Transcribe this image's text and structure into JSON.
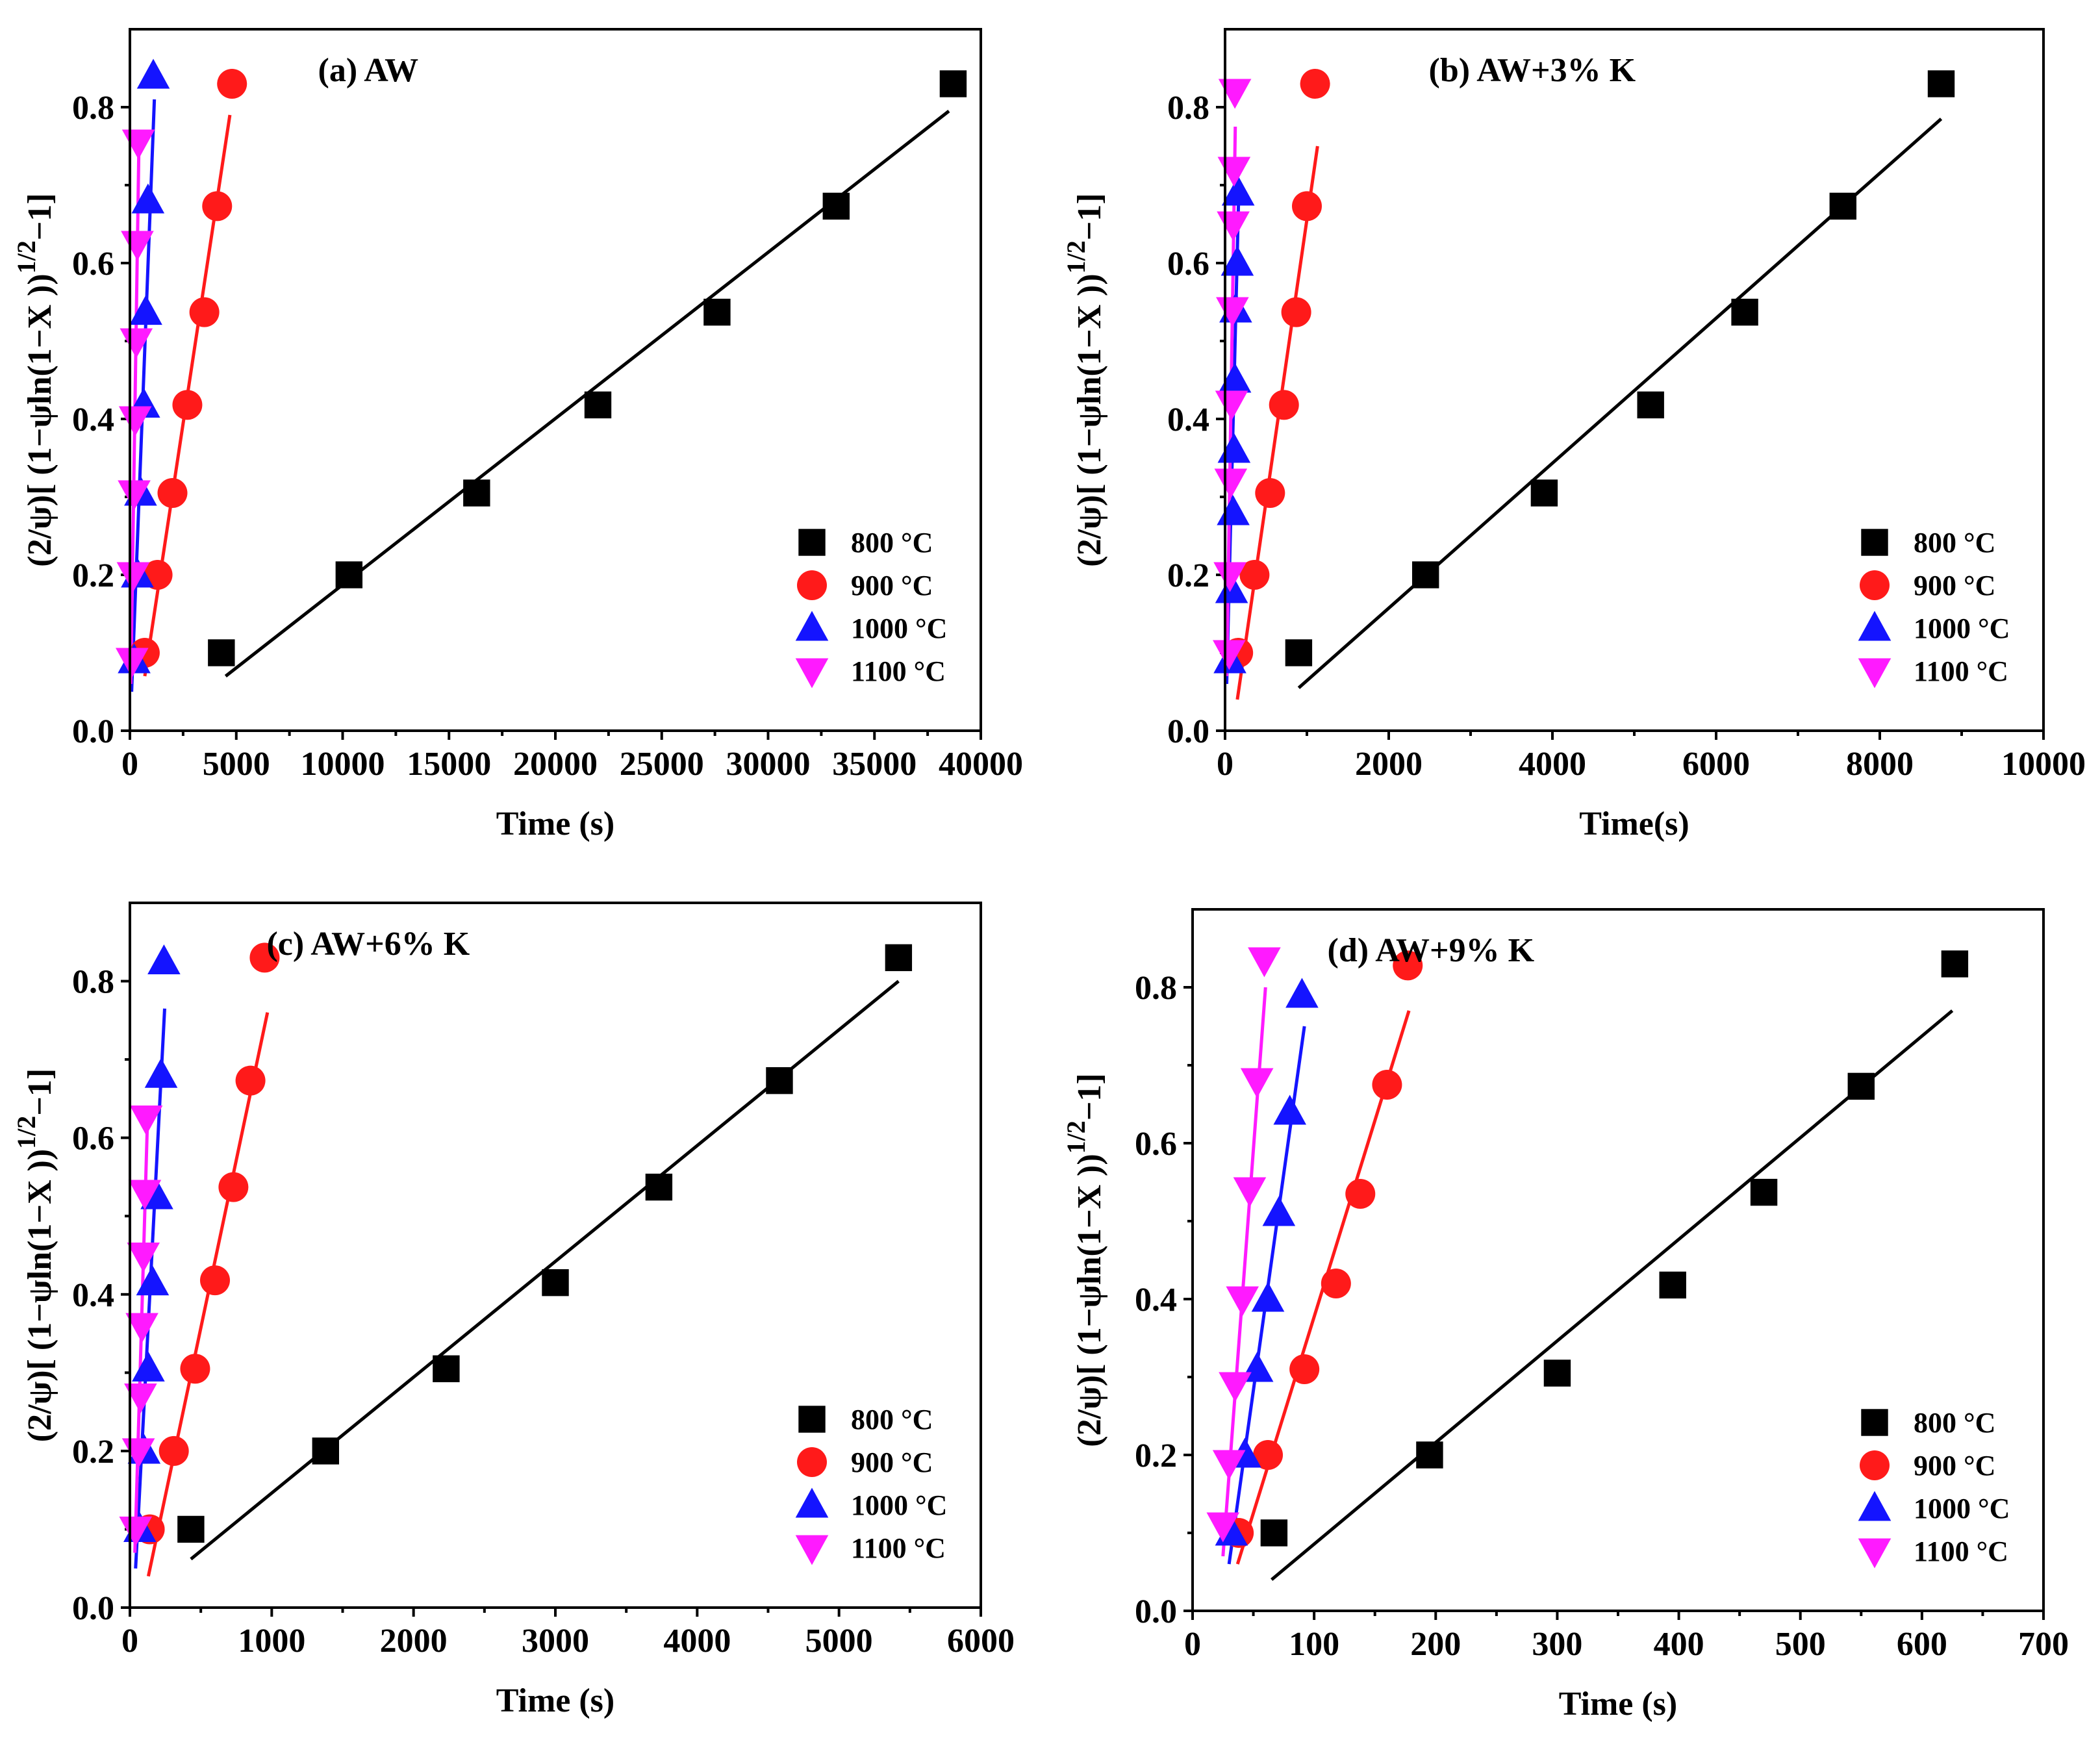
{
  "colors": {
    "800": "#000000",
    "900": "#ff1a1a",
    "1000": "#1414ff",
    "1100": "#ff1aff"
  },
  "chart_data": [
    {
      "type": "scatter",
      "title": "(a) AW",
      "xlabel": "Time (s)",
      "ylabel": "(2/ψ)[ (1−ψln(1−X ))^1/2 −1]",
      "ylabel_main": "(2/ψ)[ (1−ψln(1−X ))",
      "ylabel_sup": "1/2",
      "ylabel_tail": "−1]",
      "xlim": [
        0,
        40000
      ],
      "ylim": [
        0,
        0.9
      ],
      "xticks": [
        0,
        5000,
        10000,
        15000,
        20000,
        25000,
        30000,
        35000,
        40000
      ],
      "xticklabels": [
        "0",
        "5000",
        "10000",
        "15000",
        "20000",
        "25000",
        "30000",
        "35000",
        "40000"
      ],
      "yticks": [
        0,
        0.2,
        0.4,
        0.6,
        0.8
      ],
      "yticklabels": [
        "0.0",
        "0.2",
        "0.4",
        "0.6",
        "0.8"
      ],
      "legend": [
        "800 °C",
        "900 °C",
        "1000 °C",
        "1100 °C"
      ],
      "legend_position": "bottom-right",
      "series": [
        {
          "name": "800 °C",
          "marker": "square",
          "colorKey": "800",
          "x": [
            4300,
            10300,
            16300,
            22000,
            27600,
            33200,
            38700
          ],
          "y": [
            0.1,
            0.2,
            0.305,
            0.418,
            0.537,
            0.673,
            0.83
          ],
          "fit": [
            [
              4500,
              0.07
            ],
            [
              38500,
              0.795
            ]
          ]
        },
        {
          "name": "900 °C",
          "marker": "circle",
          "colorKey": "900",
          "x": [
            700,
            1300,
            2000,
            2700,
            3500,
            4100,
            4800
          ],
          "y": [
            0.1,
            0.2,
            0.305,
            0.418,
            0.537,
            0.673,
            0.83
          ],
          "fit": [
            [
              700,
              0.07
            ],
            [
              4700,
              0.79
            ]
          ]
        },
        {
          "name": "1000 °C",
          "marker": "triangle-up",
          "colorKey": "1000",
          "x": [
            200,
            350,
            500,
            650,
            750,
            850,
            1100
          ],
          "y": [
            0.09,
            0.2,
            0.305,
            0.418,
            0.537,
            0.68,
            0.84
          ],
          "fit": [
            [
              80,
              0.05
            ],
            [
              1150,
              0.81
            ]
          ]
        },
        {
          "name": "1100 °C",
          "marker": "triangle-down",
          "colorKey": "1100",
          "x": [
            100,
            150,
            200,
            250,
            300,
            350,
            400
          ],
          "y": [
            0.09,
            0.2,
            0.305,
            0.4,
            0.5,
            0.625,
            0.755
          ],
          "fit": [
            [
              40,
              0.06
            ],
            [
              420,
              0.745
            ]
          ]
        }
      ]
    },
    {
      "type": "scatter",
      "title": "(b) AW+3% K",
      "xlabel": "Time(s)",
      "ylabel": "(2/ψ)[ (1−ψln(1−X ))^1/2 −1]",
      "ylabel_main": "(2/ψ)[ (1−ψln(1−X ))",
      "ylabel_sup": "1/2",
      "ylabel_tail": "−1]",
      "xlim": [
        0,
        10000
      ],
      "ylim": [
        0,
        0.9
      ],
      "xticks": [
        0,
        2000,
        4000,
        6000,
        8000,
        10000
      ],
      "xticklabels": [
        "0",
        "2000",
        "4000",
        "6000",
        "8000",
        "10000"
      ],
      "yticks": [
        0,
        0.2,
        0.4,
        0.6,
        0.8
      ],
      "yticklabels": [
        "0.0",
        "0.2",
        "0.4",
        "0.6",
        "0.8"
      ],
      "legend": [
        "800 °C",
        "900 °C",
        "1000 °C",
        "1100 °C"
      ],
      "legend_position": "bottom-right",
      "series": [
        {
          "name": "800 °C",
          "marker": "square",
          "colorKey": "800",
          "x": [
            900,
            2450,
            3900,
            5200,
            6350,
            7550,
            8750
          ],
          "y": [
            0.1,
            0.2,
            0.305,
            0.418,
            0.537,
            0.673,
            0.83
          ],
          "fit": [
            [
              900,
              0.055
            ],
            [
              8750,
              0.785
            ]
          ]
        },
        {
          "name": "900 °C",
          "marker": "circle",
          "colorKey": "900",
          "x": [
            160,
            360,
            550,
            720,
            870,
            1000,
            1100
          ],
          "y": [
            0.1,
            0.2,
            0.305,
            0.418,
            0.537,
            0.673,
            0.83
          ],
          "fit": [
            [
              150,
              0.04
            ],
            [
              1130,
              0.75
            ]
          ]
        },
        {
          "name": "1000 °C",
          "marker": "triangle-up",
          "colorKey": "1000",
          "x": [
            60,
            80,
            100,
            110,
            120,
            130,
            150,
            160
          ],
          "y": [
            0.09,
            0.18,
            0.28,
            0.36,
            0.45,
            0.54,
            0.6,
            0.69
          ],
          "fit": [
            [
              20,
              0.06
            ],
            [
              165,
              0.68
            ]
          ]
        },
        {
          "name": "1100 °C",
          "marker": "triangle-down",
          "colorKey": "1100",
          "x": [
            50,
            60,
            70,
            80,
            90,
            100,
            110,
            120
          ],
          "y": [
            0.1,
            0.2,
            0.32,
            0.42,
            0.54,
            0.65,
            0.72,
            0.82
          ],
          "fit": [
            [
              20,
              0.07
            ],
            [
              125,
              0.775
            ]
          ]
        }
      ]
    },
    {
      "type": "scatter",
      "title": "(c) AW+6% K",
      "xlabel": "Time (s)",
      "ylabel": "(2/ψ)[ (1−ψln(1−X ))^1/2 −1]",
      "ylabel_main": "(2/ψ)[ (1−ψln(1−X ))",
      "ylabel_sup": "1/2",
      "ylabel_tail": "−1]",
      "xlim": [
        0,
        6000
      ],
      "ylim": [
        0,
        0.9
      ],
      "xticks": [
        0,
        1000,
        2000,
        3000,
        4000,
        5000,
        6000
      ],
      "xticklabels": [
        "0",
        "1000",
        "2000",
        "3000",
        "4000",
        "5000",
        "6000"
      ],
      "yticks": [
        0,
        0.2,
        0.4,
        0.6,
        0.8
      ],
      "yticklabels": [
        "0.0",
        "0.2",
        "0.4",
        "0.6",
        "0.8"
      ],
      "legend": [
        "800 °C",
        "900 °C",
        "1000 °C",
        "1100 °C"
      ],
      "legend_position": "bottom-right",
      "series": [
        {
          "name": "800 °C",
          "marker": "square",
          "colorKey": "800",
          "x": [
            430,
            1380,
            2230,
            3000,
            3730,
            4580,
            5420
          ],
          "y": [
            0.1,
            0.2,
            0.305,
            0.415,
            0.537,
            0.673,
            0.83
          ],
          "fit": [
            [
              430,
              0.062
            ],
            [
              5420,
              0.8
            ]
          ]
        },
        {
          "name": "900 °C",
          "marker": "circle",
          "colorKey": "900",
          "x": [
            140,
            310,
            460,
            600,
            730,
            850,
            950
          ],
          "y": [
            0.1,
            0.2,
            0.305,
            0.418,
            0.537,
            0.673,
            0.83
          ],
          "fit": [
            [
              130,
              0.04
            ],
            [
              970,
              0.76
            ]
          ]
        },
        {
          "name": "1000 °C",
          "marker": "triangle-up",
          "colorKey": "1000",
          "x": [
            70,
            100,
            130,
            160,
            190,
            220,
            240
          ],
          "y": [
            0.1,
            0.2,
            0.305,
            0.415,
            0.525,
            0.68,
            0.825
          ],
          "fit": [
            [
              40,
              0.05
            ],
            [
              245,
              0.765
            ]
          ]
        },
        {
          "name": "1100 °C",
          "marker": "triangle-down",
          "colorKey": "1100",
          "x": [
            40,
            60,
            75,
            85,
            95,
            105,
            115
          ],
          "y": [
            0.1,
            0.2,
            0.27,
            0.36,
            0.45,
            0.53,
            0.625
          ],
          "fit": [
            [
              35,
              0.07
            ],
            [
              125,
              0.63
            ]
          ]
        }
      ]
    },
    {
      "type": "scatter",
      "title": "(d) AW+9% K",
      "xlabel": "Time (s)",
      "ylabel": "(2/ψ)[ (1−ψln(1−X ))^1/2 −1]",
      "ylabel_main": "(2/ψ)[ (1−ψln(1−X ))",
      "ylabel_sup": "1/2",
      "ylabel_tail": "−1]",
      "xlim": [
        0,
        700
      ],
      "ylim": [
        0,
        0.9
      ],
      "xticks": [
        0,
        100,
        200,
        300,
        400,
        500,
        600,
        700
      ],
      "xticklabels": [
        "0",
        "100",
        "200",
        "300",
        "400",
        "500",
        "600",
        "700"
      ],
      "yticks": [
        0,
        0.2,
        0.4,
        0.6,
        0.8
      ],
      "yticklabels": [
        "0.0",
        "0.2",
        "0.4",
        "0.6",
        "0.8"
      ],
      "legend": [
        "800 °C",
        "900 °C",
        "1000 °C",
        "1100 °C"
      ],
      "legend_position": "bottom-right",
      "series": [
        {
          "name": "800 °C",
          "marker": "square",
          "colorKey": "800",
          "x": [
            67,
            195,
            300,
            395,
            470,
            550,
            627
          ],
          "y": [
            0.1,
            0.2,
            0.305,
            0.418,
            0.537,
            0.673,
            0.83
          ],
          "fit": [
            [
              65,
              0.04
            ],
            [
              625,
              0.77
            ]
          ]
        },
        {
          "name": "900 °C",
          "marker": "circle",
          "colorKey": "900",
          "x": [
            38,
            62,
            92,
            118,
            138,
            160,
            177
          ],
          "y": [
            0.1,
            0.2,
            0.31,
            0.42,
            0.535,
            0.675,
            0.828
          ],
          "fit": [
            [
              37,
              0.06
            ],
            [
              178,
              0.77
            ]
          ]
        },
        {
          "name": "1000 °C",
          "marker": "triangle-up",
          "colorKey": "1000",
          "x": [
            32,
            43,
            53,
            62,
            71,
            80,
            90
          ],
          "y": [
            0.1,
            0.2,
            0.31,
            0.4,
            0.51,
            0.64,
            0.79
          ],
          "fit": [
            [
              30,
              0.06
            ],
            [
              92,
              0.75
            ]
          ]
        },
        {
          "name": "1100 °C",
          "marker": "triangle-down",
          "colorKey": "1100",
          "x": [
            25,
            30,
            35,
            41,
            47,
            53,
            59
          ],
          "y": [
            0.11,
            0.19,
            0.29,
            0.4,
            0.54,
            0.68,
            0.835
          ],
          "fit": [
            [
              25,
              0.07
            ],
            [
              60,
              0.8
            ]
          ]
        }
      ]
    }
  ]
}
